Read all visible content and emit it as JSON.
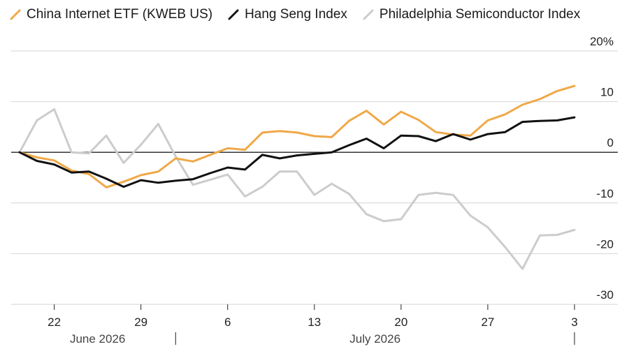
{
  "chart_data": {
    "type": "line",
    "series": [
      {
        "name": "China Internet ETF (KWEB US)",
        "color": "#f0a848",
        "values": [
          0,
          -1.0,
          -1.6,
          -3.6,
          -4.3,
          -6.9,
          -5.8,
          -4.5,
          -3.8,
          -1.2,
          -1.8,
          -0.5,
          0.8,
          0.5,
          3.9,
          4.2,
          3.9,
          3.2,
          3.0,
          6.2,
          8.2,
          5.5,
          8.0,
          6.4,
          4.0,
          3.5,
          3.3,
          6.3,
          7.5,
          9.4,
          10.5,
          12.1,
          13.1
        ]
      },
      {
        "name": "Hang Seng Index",
        "color": "#111111",
        "values": [
          0,
          -1.7,
          -2.4,
          -4.0,
          -3.8,
          -5.2,
          -6.8,
          -5.5,
          -6.0,
          -5.6,
          -5.3,
          -4.1,
          -3.0,
          -3.4,
          -0.5,
          -1.2,
          -0.6,
          -0.3,
          0.0,
          1.4,
          2.7,
          0.8,
          3.3,
          3.2,
          2.2,
          3.6,
          2.5,
          3.6,
          4.0,
          6.0,
          6.2,
          6.3,
          6.9
        ]
      },
      {
        "name": "Philadelphia Semiconductor Index",
        "color": "#cccccc",
        "values": [
          0,
          6.3,
          8.5,
          0.0,
          -0.2,
          3.3,
          -2.1,
          1.5,
          5.6,
          -0.8,
          -6.4,
          -5.4,
          -4.4,
          -8.7,
          -6.8,
          -3.8,
          -3.8,
          -8.4,
          -6.2,
          -8.2,
          -12.2,
          -13.6,
          -13.2,
          -8.4,
          -8.0,
          -8.4,
          -12.5,
          -14.8,
          -18.7,
          -23.0,
          -16.4,
          -16.3,
          -15.3
        ]
      }
    ],
    "y_axis": {
      "ticks": [
        20,
        10,
        0,
        -10,
        -20,
        -30
      ],
      "tick_labels": [
        "20%",
        "10",
        "0",
        "-10",
        "-20",
        "-30"
      ],
      "ylim": [
        -30,
        20
      ]
    },
    "x_axis": {
      "tick_labels": [
        "22",
        "29",
        "6",
        "13",
        "20",
        "27",
        "3"
      ],
      "tick_index": [
        2,
        7,
        12,
        17,
        22,
        27,
        32
      ],
      "months": [
        {
          "label": "June 2026",
          "index_start": 0,
          "index_end": 9
        },
        {
          "label": "July 2026",
          "index_start": 9,
          "index_end": 32
        }
      ],
      "month_separators": [
        9,
        32
      ]
    },
    "grid": true,
    "legend_position": "top-left"
  }
}
